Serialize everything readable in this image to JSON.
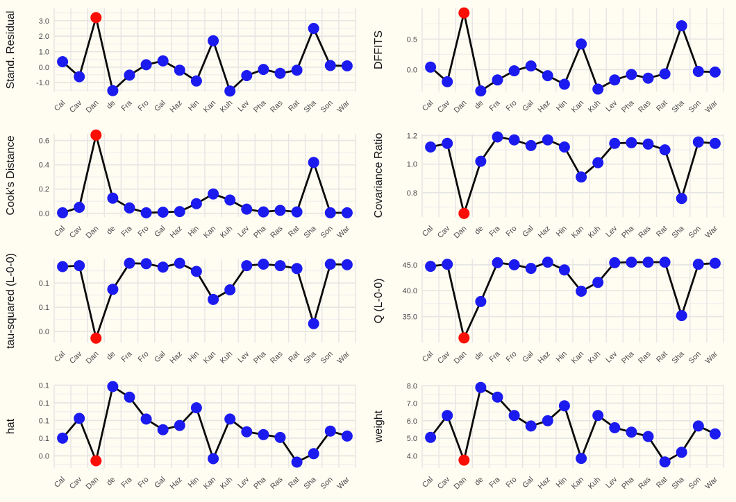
{
  "figure": {
    "background": "#fffcf2",
    "grid_major_color": "#e6e6e3",
    "grid_minor_color": "#efefec",
    "line_color": "#0a0a0a",
    "point_color": "#1b1bf0",
    "highlight_color": "#fa0e05",
    "tick_label_color": "#4a4a4a",
    "axis_title_color": "#111111"
  },
  "chart_data": {
    "type": "line",
    "title": "",
    "description": "Influence diagnostics panel figure: 8 leave-one-out diagnostic line charts over 18 studies, study 'Dan' highlighted in red",
    "layout": {
      "rows": 4,
      "cols": 2,
      "grid": "on",
      "legend": "none",
      "x_tick_angle": 45
    },
    "categories": [
      "Cal",
      "Cav",
      "Dan",
      "de",
      "Fra",
      "Fro",
      "Gal",
      "Haz",
      "Hin",
      "Kan",
      "Kuh",
      "Lev",
      "Pha",
      "Ras",
      "Rat",
      "Sha",
      "Son",
      "War"
    ],
    "highlight_category": "Dan",
    "highlight_index": 2,
    "panels": [
      {
        "ylabel": "Stand. Residual",
        "ylim": [
          -1.58,
          3.8
        ],
        "yticks": [
          {
            "value": 3.0,
            "label": "3.0"
          },
          {
            "value": 2.0,
            "label": "2.0"
          },
          {
            "value": 1.0,
            "label": "1.0"
          },
          {
            "value": 0.0,
            "label": "0.0"
          },
          {
            "value": -1.0,
            "label": "-1.0"
          }
        ],
        "values": [
          0.35,
          -0.62,
          3.2,
          -1.52,
          -0.52,
          0.15,
          0.4,
          -0.2,
          -0.9,
          1.7,
          -1.55,
          -0.55,
          -0.15,
          -0.4,
          -0.2,
          2.5,
          0.1,
          0.08
        ]
      },
      {
        "ylabel": "DFFITS",
        "ylim": [
          -0.36,
          1.005
        ],
        "yticks": [
          {
            "value": 0.5,
            "label": "0.5"
          },
          {
            "value": 0.0,
            "label": "0.0"
          }
        ],
        "values": [
          0.04,
          -0.2,
          0.93,
          -0.35,
          -0.17,
          -0.02,
          0.06,
          -0.1,
          -0.24,
          0.42,
          -0.32,
          -0.17,
          -0.08,
          -0.14,
          -0.07,
          0.72,
          -0.03,
          -0.04
        ]
      },
      {
        "ylabel": "Cook's Distance",
        "ylim": [
          -0.03,
          0.655
        ],
        "yticks": [
          {
            "value": 0.6,
            "label": "0.6"
          },
          {
            "value": 0.4,
            "label": "0.4"
          },
          {
            "value": 0.2,
            "label": "0.2"
          },
          {
            "value": 0.0,
            "label": "0.0"
          }
        ],
        "values": [
          0.005,
          0.05,
          0.645,
          0.125,
          0.045,
          0.005,
          0.01,
          0.015,
          0.08,
          0.16,
          0.11,
          0.035,
          0.012,
          0.025,
          0.012,
          0.42,
          0.005,
          0.005
        ]
      },
      {
        "ylabel": "Covariance Ratio",
        "ylim": [
          0.63,
          1.212
        ],
        "yticks": [
          {
            "value": 1.2,
            "label": "1.2"
          },
          {
            "value": 1.0,
            "label": "1.0"
          },
          {
            "value": 0.8,
            "label": "0.8"
          }
        ],
        "values": [
          1.12,
          1.145,
          0.655,
          1.02,
          1.19,
          1.17,
          1.13,
          1.17,
          1.12,
          0.91,
          1.01,
          1.145,
          1.15,
          1.14,
          1.1,
          0.76,
          1.155,
          1.145
        ]
      },
      {
        "ylabel": "tau-squared (L-0-0)",
        "ylim": [
          0.027,
          0.199
        ],
        "yticks": [
          {
            "value": 0.15,
            "label": "0.1"
          },
          {
            "value": 0.1,
            "label": "0.1"
          },
          {
            "value": 0.05,
            "label": "0.0"
          }
        ],
        "values": [
          0.184,
          0.186,
          0.036,
          0.137,
          0.191,
          0.19,
          0.183,
          0.191,
          0.174,
          0.116,
          0.136,
          0.186,
          0.189,
          0.186,
          0.18,
          0.066,
          0.189,
          0.188
        ]
      },
      {
        "ylabel": "Q (L-0-0)",
        "ylim": [
          30.0,
          46.05
        ],
        "yticks": [
          {
            "value": 45.0,
            "label": "45.0"
          },
          {
            "value": 40.0,
            "label": "40.0"
          },
          {
            "value": 35.0,
            "label": "35.0"
          }
        ],
        "values": [
          44.7,
          45.1,
          30.9,
          37.9,
          45.4,
          45.0,
          44.3,
          45.5,
          44.0,
          39.9,
          41.6,
          45.4,
          45.5,
          45.5,
          45.5,
          35.2,
          45.1,
          45.3
        ]
      },
      {
        "ylabel": "hat",
        "ylim": [
          0.0077,
          0.1255
        ],
        "yticks": [
          {
            "value": 0.125,
            "label": "0.1"
          },
          {
            "value": 0.1,
            "label": "0.1"
          },
          {
            "value": 0.075,
            "label": "0.1"
          },
          {
            "value": 0.05,
            "label": "0.1"
          },
          {
            "value": 0.025,
            "label": "0.0"
          }
        ],
        "values": [
          0.05,
          0.078,
          0.018,
          0.123,
          0.108,
          0.077,
          0.062,
          0.068,
          0.093,
          0.021,
          0.077,
          0.059,
          0.055,
          0.051,
          0.016,
          0.028,
          0.06,
          0.053
        ]
      },
      {
        "ylabel": "weight",
        "ylim": [
          3.3,
          8.05
        ],
        "yticks": [
          {
            "value": 8.0,
            "label": "8.0"
          },
          {
            "value": 7.0,
            "label": "7.0"
          },
          {
            "value": 6.0,
            "label": "6.0"
          },
          {
            "value": 5.0,
            "label": "5.0"
          },
          {
            "value": 4.0,
            "label": "4.0"
          }
        ],
        "values": [
          5.05,
          6.3,
          3.75,
          7.9,
          7.35,
          6.3,
          5.7,
          6.0,
          6.85,
          3.85,
          6.3,
          5.6,
          5.35,
          5.1,
          3.65,
          4.2,
          5.7,
          5.25
        ]
      }
    ]
  }
}
